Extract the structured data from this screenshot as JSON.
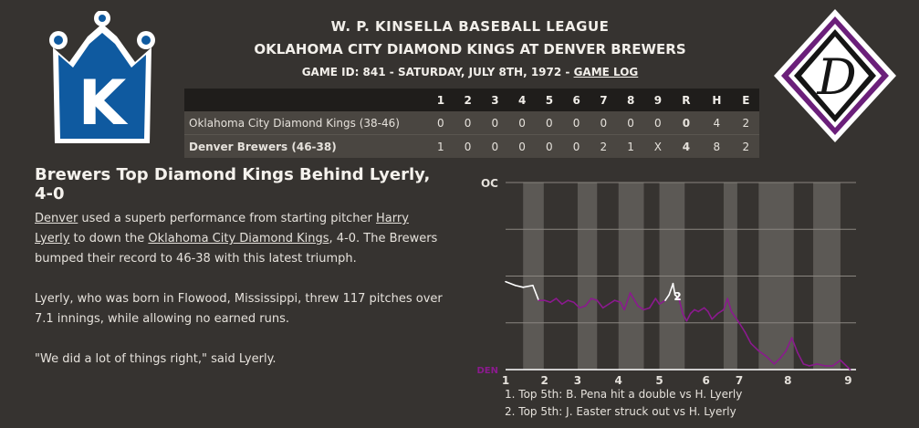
{
  "header": {
    "league": "W. P. KINSELLA BASEBALL LEAGUE",
    "matchup": "OKLAHOMA CITY DIAMOND KINGS AT DENVER BREWERS",
    "game_info_prefix": "GAME ID: 841 - SATURDAY, JULY 8TH, 1972 - ",
    "game_log_link": "GAME LOG"
  },
  "logos": {
    "left_letter": "K",
    "right_letter": "D",
    "left_color": "#0f5aa0",
    "right_color": "#6b1f7a"
  },
  "linescore": {
    "headers": [
      "",
      "1",
      "2",
      "3",
      "4",
      "5",
      "6",
      "7",
      "8",
      "9",
      "R",
      "H",
      "E"
    ],
    "rows": [
      {
        "team": "Oklahoma City Diamond Kings (38-46)",
        "innings": [
          "0",
          "0",
          "0",
          "0",
          "0",
          "0",
          "0",
          "0",
          "0"
        ],
        "r": "0",
        "h": "4",
        "e": "2"
      },
      {
        "team": "Denver Brewers (46-38)",
        "innings": [
          "1",
          "0",
          "0",
          "0",
          "0",
          "0",
          "2",
          "1",
          "X"
        ],
        "r": "4",
        "h": "8",
        "e": "2"
      }
    ]
  },
  "story": {
    "headline": "Brewers Top Diamond Kings Behind Lyerly, 4-0",
    "p1": {
      "link1": "Denver",
      "t1": " used a superb performance from starting pitcher ",
      "link2": "Harry Lyerly",
      "t2": " to down the ",
      "link3": "Oklahoma City Diamond Kings",
      "t3": ", 4-0. The Brewers bumped their record to 46-38 with this latest triumph."
    },
    "p2": "Lyerly, who was born in Flowood, Mississippi, threw 117 pitches over 7.1 innings, while allowing no earned runs.",
    "p3": "\"We did a lot of things right,\" said Lyerly."
  },
  "chart_data": {
    "type": "line",
    "y_top_label": "OC",
    "y_bottom_label": "DEN",
    "x_tick_labels": [
      "1",
      "2",
      "3",
      "4",
      "5",
      "6",
      "7",
      "8",
      "9"
    ],
    "ylim": [
      0,
      1
    ],
    "annotation_marker": "2",
    "colors": {
      "home": "#8b1a8e",
      "away": "#ffffff",
      "band": "#5c5955"
    },
    "series": [
      {
        "values": [
          [
            0.0,
            0.47
          ],
          [
            0.25,
            0.45
          ],
          [
            0.45,
            0.44
          ],
          [
            0.7,
            0.45
          ],
          [
            0.85,
            0.37
          ],
          [
            1.0,
            0.37
          ],
          [
            1.15,
            0.36
          ],
          [
            1.3,
            0.38
          ],
          [
            1.45,
            0.35
          ],
          [
            1.6,
            0.37
          ],
          [
            1.75,
            0.36
          ],
          [
            1.9,
            0.33
          ],
          [
            2.05,
            0.34
          ],
          [
            2.2,
            0.38
          ],
          [
            2.35,
            0.37
          ],
          [
            2.5,
            0.33
          ],
          [
            2.65,
            0.35
          ],
          [
            2.8,
            0.37
          ],
          [
            2.95,
            0.36
          ],
          [
            3.05,
            0.32
          ],
          [
            3.2,
            0.41
          ],
          [
            3.4,
            0.34
          ],
          [
            3.55,
            0.32
          ],
          [
            3.7,
            0.33
          ],
          [
            3.85,
            0.38
          ],
          [
            3.95,
            0.35
          ],
          [
            4.1,
            0.37
          ],
          [
            4.2,
            0.4
          ],
          [
            4.3,
            0.46
          ],
          [
            4.35,
            0.4
          ],
          [
            4.45,
            0.38
          ],
          [
            4.55,
            0.3
          ],
          [
            4.65,
            0.26
          ],
          [
            4.75,
            0.3
          ],
          [
            4.85,
            0.32
          ],
          [
            4.95,
            0.31
          ],
          [
            5.1,
            0.33
          ],
          [
            5.2,
            0.31
          ],
          [
            5.3,
            0.27
          ],
          [
            5.45,
            0.3
          ],
          [
            5.6,
            0.32
          ],
          [
            5.7,
            0.38
          ],
          [
            5.8,
            0.31
          ],
          [
            5.9,
            0.28
          ],
          [
            6.0,
            0.25
          ],
          [
            6.15,
            0.2
          ],
          [
            6.3,
            0.14
          ],
          [
            6.5,
            0.1
          ],
          [
            6.7,
            0.07
          ],
          [
            6.9,
            0.03
          ],
          [
            7.05,
            0.06
          ],
          [
            7.2,
            0.1
          ],
          [
            7.35,
            0.17
          ],
          [
            7.5,
            0.09
          ],
          [
            7.65,
            0.03
          ],
          [
            7.8,
            0.02
          ],
          [
            8.0,
            0.03
          ],
          [
            8.2,
            0.02
          ],
          [
            8.4,
            0.02
          ],
          [
            8.6,
            0.05
          ],
          [
            8.85,
            0.0
          ]
        ]
      }
    ],
    "plays": [
      {
        "num": "1",
        "text": "Top 5th: B. Pena hit a double vs H. Lyerly"
      },
      {
        "num": "2",
        "text": "Top 5th: J. Easter struck out vs H. Lyerly"
      }
    ]
  }
}
